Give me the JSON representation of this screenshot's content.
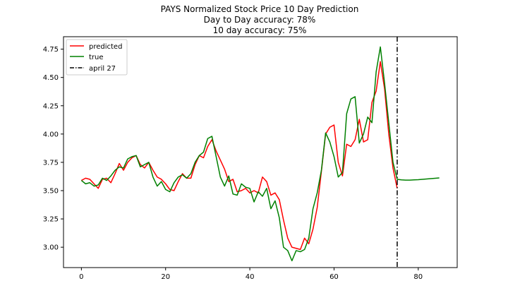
{
  "chart_data": {
    "type": "line",
    "title_lines": [
      "PAYS Normalized Stock Price 10 Day Prediction",
      "Day to Day accuracy: 78%",
      "10 day accuracy: 75%"
    ],
    "xlabel": "",
    "ylabel": "",
    "xlim": [
      -4.25,
      89.25
    ],
    "ylim": [
      2.82,
      4.86
    ],
    "xticks": [
      0,
      20,
      40,
      60,
      80
    ],
    "yticks": [
      3.0,
      3.25,
      3.5,
      3.75,
      4.0,
      4.25,
      4.5,
      4.75
    ],
    "ytick_labels": [
      "3.00",
      "3.25",
      "3.50",
      "3.75",
      "4.00",
      "4.25",
      "4.50",
      "4.75"
    ],
    "legend_position": "upper-left",
    "series": [
      {
        "name": "predicted",
        "color": "#ff0000",
        "x": [
          0,
          1,
          2,
          3,
          4,
          5,
          6,
          7,
          8,
          9,
          10,
          11,
          12,
          13,
          14,
          15,
          16,
          17,
          18,
          19,
          20,
          21,
          22,
          23,
          24,
          25,
          26,
          27,
          28,
          29,
          30,
          31,
          32,
          33,
          34,
          35,
          36,
          37,
          38,
          39,
          40,
          41,
          42,
          43,
          44,
          45,
          46,
          47,
          48,
          49,
          50,
          51,
          52,
          53,
          54,
          55,
          56,
          57,
          58,
          59,
          60,
          61,
          62,
          63,
          64,
          65,
          66,
          67,
          68,
          69,
          70,
          71,
          72,
          73,
          74,
          75
        ],
        "y": [
          3.59,
          3.61,
          3.6,
          3.56,
          3.52,
          3.6,
          3.61,
          3.57,
          3.65,
          3.74,
          3.68,
          3.75,
          3.79,
          3.81,
          3.73,
          3.7,
          3.75,
          3.68,
          3.62,
          3.6,
          3.56,
          3.51,
          3.5,
          3.58,
          3.65,
          3.61,
          3.61,
          3.73,
          3.81,
          3.79,
          3.89,
          3.95,
          3.85,
          3.77,
          3.69,
          3.58,
          3.6,
          3.49,
          3.5,
          3.52,
          3.48,
          3.5,
          3.48,
          3.62,
          3.58,
          3.46,
          3.48,
          3.42,
          3.24,
          3.08,
          3.0,
          2.99,
          2.98,
          3.08,
          3.03,
          3.16,
          3.35,
          3.67,
          4.0,
          4.06,
          4.08,
          3.75,
          3.63,
          3.91,
          3.89,
          3.95,
          4.13,
          3.93,
          3.95,
          4.28,
          4.38,
          4.64,
          4.4,
          4.0,
          3.7,
          3.52
        ]
      },
      {
        "name": "true",
        "color": "#008000",
        "x": [
          0,
          1,
          2,
          3,
          4,
          5,
          6,
          7,
          8,
          9,
          10,
          11,
          12,
          13,
          14,
          15,
          16,
          17,
          18,
          19,
          20,
          21,
          22,
          23,
          24,
          25,
          26,
          27,
          28,
          29,
          30,
          31,
          32,
          33,
          34,
          35,
          36,
          37,
          38,
          39,
          40,
          41,
          42,
          43,
          44,
          45,
          46,
          47,
          48,
          49,
          50,
          51,
          52,
          53,
          54,
          55,
          56,
          57,
          58,
          59,
          60,
          61,
          62,
          63,
          64,
          65,
          66,
          67,
          68,
          69,
          70,
          71,
          72,
          73,
          74,
          75,
          76,
          77,
          78,
          79,
          80,
          81,
          82,
          83,
          84,
          85
        ],
        "y": [
          3.59,
          3.56,
          3.57,
          3.54,
          3.55,
          3.61,
          3.59,
          3.63,
          3.68,
          3.71,
          3.7,
          3.78,
          3.8,
          3.81,
          3.71,
          3.73,
          3.75,
          3.62,
          3.54,
          3.58,
          3.51,
          3.49,
          3.57,
          3.62,
          3.64,
          3.61,
          3.65,
          3.75,
          3.81,
          3.84,
          3.96,
          3.98,
          3.8,
          3.62,
          3.54,
          3.63,
          3.47,
          3.46,
          3.56,
          3.53,
          3.52,
          3.4,
          3.49,
          3.45,
          3.52,
          3.34,
          3.41,
          3.26,
          3.0,
          2.97,
          2.88,
          2.97,
          2.96,
          2.98,
          3.08,
          3.34,
          3.48,
          3.68,
          4.01,
          3.93,
          3.8,
          3.62,
          3.66,
          4.18,
          4.31,
          4.33,
          3.92,
          4.0,
          4.15,
          4.1,
          4.55,
          4.77,
          4.45,
          4.1,
          3.75,
          3.6,
          3.595,
          3.593,
          3.593,
          3.595,
          3.597,
          3.6,
          3.603,
          3.606,
          3.609,
          3.612
        ]
      }
    ],
    "vline": {
      "name": "april 27",
      "x": 75,
      "color": "#000000",
      "style": "dash-dot"
    }
  }
}
